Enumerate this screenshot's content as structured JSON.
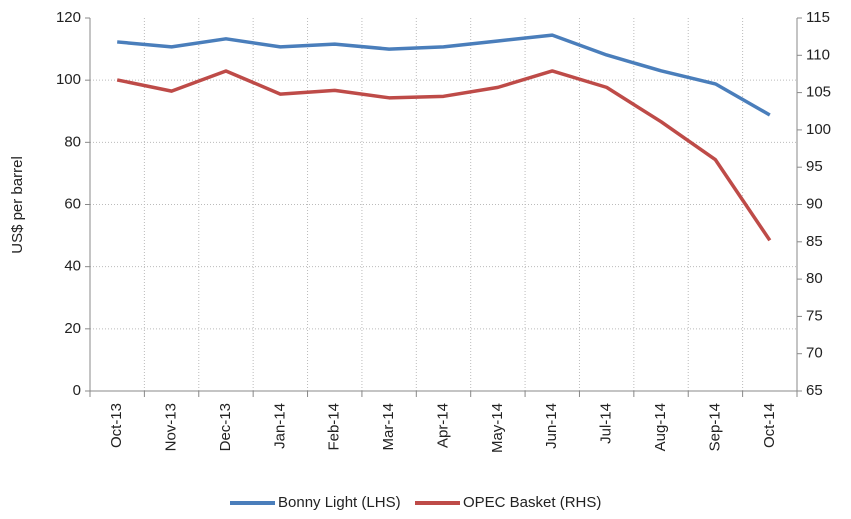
{
  "chart_data": {
    "type": "line",
    "y_label": "US$ per barrel",
    "categories": [
      "Oct-13",
      "Nov-13",
      "Dec-13",
      "Jan-14",
      "Feb-14",
      "Mar-14",
      "Apr-14",
      "May-14",
      "Jun-14",
      "Jul-14",
      "Aug-14",
      "Sep-14",
      "Oct-14"
    ],
    "series": [
      {
        "name": "Bonny Light (LHS)",
        "color": "#4a7ebb",
        "values": [
          112.3,
          110.7,
          113.3,
          110.7,
          111.6,
          110.0,
          110.7,
          112.6,
          114.5,
          108.1,
          103.0,
          98.8,
          88.8
        ]
      },
      {
        "name": "OPEC Basket (RHS)",
        "color": "#be4b48",
        "axis": "y2",
        "values": [
          106.7,
          105.2,
          107.9,
          104.8,
          105.3,
          104.3,
          104.5,
          105.7,
          107.9,
          105.7,
          101.1,
          96.0,
          85.2
        ]
      }
    ],
    "ylim": [
      0,
      120
    ],
    "yticks": [
      0,
      20,
      40,
      60,
      80,
      100,
      120
    ],
    "y2lim": [
      65,
      115
    ],
    "y2ticks": [
      65,
      70,
      75,
      80,
      85,
      90,
      95,
      100,
      105,
      110,
      115
    ],
    "grid": true,
    "legend": "bottom"
  }
}
